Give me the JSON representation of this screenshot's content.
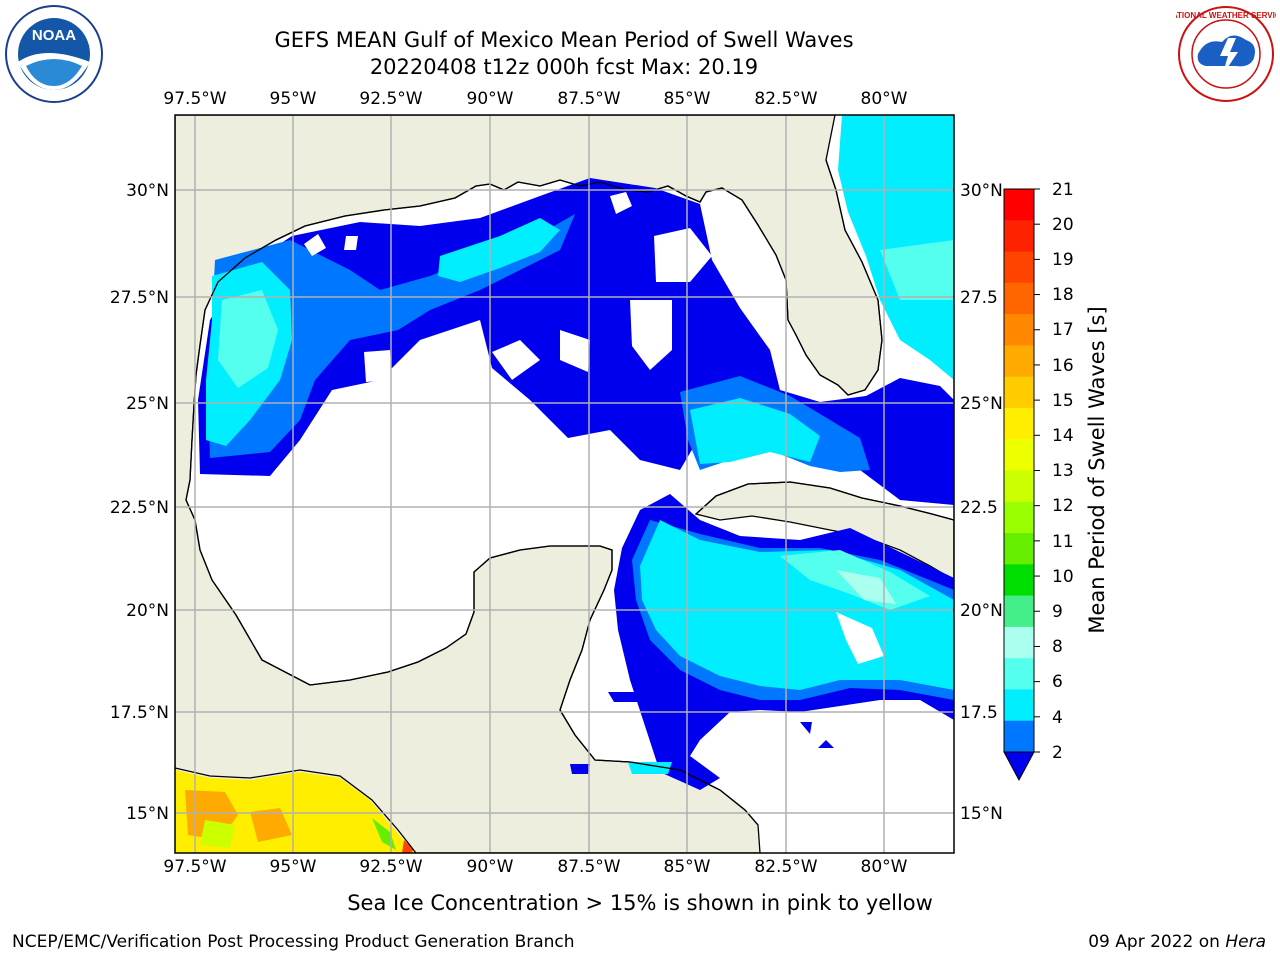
{
  "header": {
    "title_line1": "GEFS MEAN Gulf of Mexico Mean Period of Swell Waves",
    "title_line2": "20220408 t12z 000h fcst   Max: 20.19"
  },
  "map": {
    "lon_labels": [
      "97.5°W",
      "95°W",
      "92.5°W",
      "90°W",
      "87.5°W",
      "85°W",
      "82.5°W",
      "80°W"
    ],
    "lat_labels_left": [
      "30°N",
      "27.5°N",
      "25°N",
      "22.5°N",
      "20°N",
      "17.5°N",
      "15°N"
    ],
    "lat_labels_right": [
      "30°N",
      "27.5",
      "25°N",
      "22.5",
      "20°N",
      "17.5",
      "15°N"
    ],
    "colors": {
      "land": "#eeeedf",
      "ocean": "#ffffff",
      "grid": "#b0b0b0",
      "coast": "#000000"
    }
  },
  "colorbar": {
    "title": "Mean Period of Swell Waves [s]",
    "ticks": [
      "21",
      "20",
      "19",
      "18",
      "17",
      "16",
      "15",
      "14",
      "13",
      "12",
      "11",
      "10",
      "9",
      "8",
      "6",
      "4",
      "2"
    ],
    "colors": [
      "#ff0000",
      "#ff2200",
      "#ff4400",
      "#ff6600",
      "#ff8800",
      "#ffaa00",
      "#ffcc00",
      "#ffee00",
      "#eeff00",
      "#ccff00",
      "#99ff00",
      "#66ee00",
      "#00dd00",
      "#44ee88",
      "#aaffee",
      "#55ffee",
      "#00eeff",
      "#0077ff"
    ],
    "extend_color": "#0000ee"
  },
  "footer": {
    "sea_ice_note": "Sea Ice Concentration > 15% is shown in pink to yellow",
    "left": "NCEP/EMC/Verification Post Processing Product Generation Branch",
    "right_date": "09 Apr 2022 on ",
    "right_machine": "Hera"
  },
  "logos": {
    "noaa_text": "NOAA",
    "nws_text": "NATIONAL WEATHER SERVICE"
  }
}
